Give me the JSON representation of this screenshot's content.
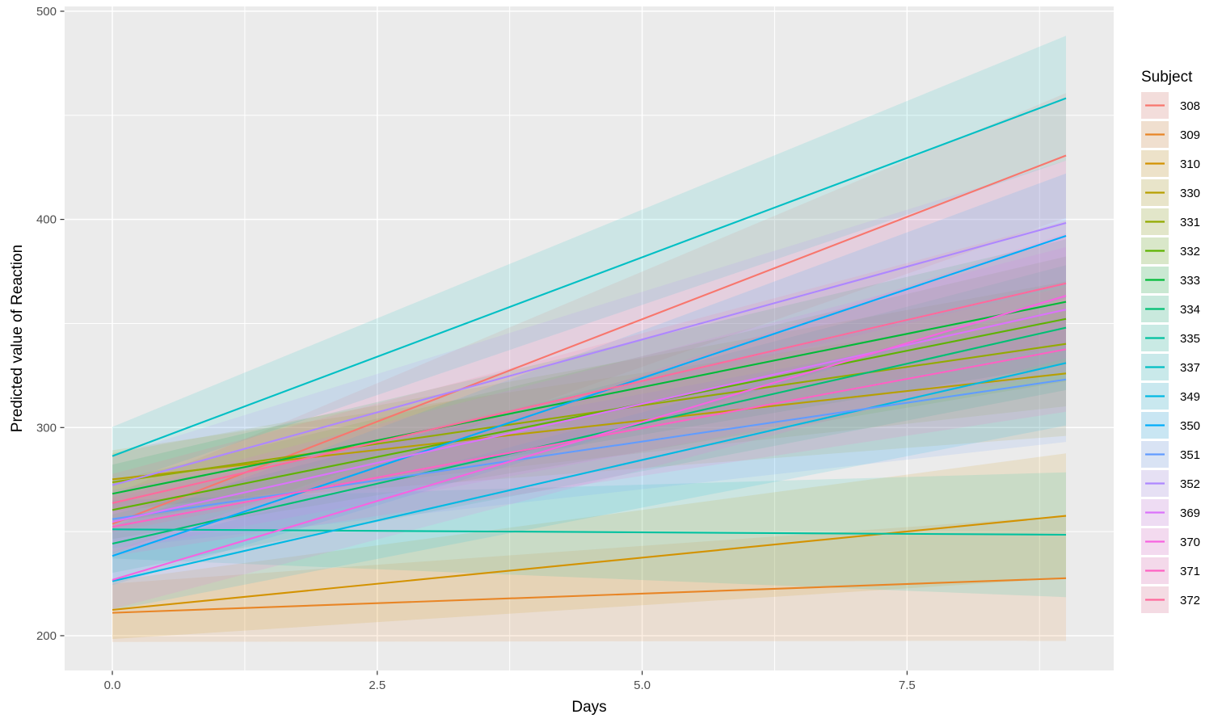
{
  "figure": {
    "background": "#FFFFFF",
    "panel_background": "#EBEBEB",
    "grid_color": "#FFFFFF",
    "tick_mark_color": "#333333",
    "tick_label_color": "#4D4D4D",
    "legend_key_background": "#F2F2F2",
    "ribbon_opacity": 0.13
  },
  "chart_data": {
    "type": "line",
    "title": "",
    "xlabel": "Days",
    "ylabel": "Predicted value of Reaction",
    "legend_title": "Subject",
    "legend_position": "right",
    "grid": true,
    "x_domain": [
      0,
      9
    ],
    "x_range": [
      -0.45,
      9.45
    ],
    "y_range": [
      183.3,
      502.3
    ],
    "x_ticks": [
      {
        "value": 0,
        "label": "0.0"
      },
      {
        "value": 2.5,
        "label": "2.5"
      },
      {
        "value": 5,
        "label": "5.0"
      },
      {
        "value": 7.5,
        "label": "7.5"
      }
    ],
    "y_ticks": [
      {
        "value": 200,
        "label": "200"
      },
      {
        "value": 300,
        "label": "300"
      },
      {
        "value": 400,
        "label": "400"
      },
      {
        "value": 500,
        "label": "500"
      }
    ],
    "x_minor_gridlines": [
      1.25,
      3.75,
      6.25,
      8.75
    ],
    "y_minor_gridlines": [
      250,
      350,
      450
    ],
    "ci_half_width": {
      "day0": 14,
      "day9": 30
    },
    "series": [
      {
        "name": "308",
        "color": "#F8766D",
        "day0": 253.7,
        "day9": 430.7
      },
      {
        "name": "309",
        "color": "#E88526",
        "day0": 211.0,
        "day9": 227.6
      },
      {
        "name": "310",
        "color": "#D39200",
        "day0": 212.4,
        "day9": 257.6
      },
      {
        "name": "330",
        "color": "#B79F00",
        "day0": 275.1,
        "day9": 326.0
      },
      {
        "name": "331",
        "color": "#93AA00",
        "day0": 273.7,
        "day9": 340.2
      },
      {
        "name": "332",
        "color": "#5EB300",
        "day0": 260.4,
        "day9": 352.2
      },
      {
        "name": "333",
        "color": "#00BA38",
        "day0": 268.2,
        "day9": 360.4
      },
      {
        "name": "334",
        "color": "#00BF74",
        "day0": 244.2,
        "day9": 348.0
      },
      {
        "name": "335",
        "color": "#00C19F",
        "day0": 251.1,
        "day9": 248.5
      },
      {
        "name": "337",
        "color": "#00BFC4",
        "day0": 286.3,
        "day9": 458.2
      },
      {
        "name": "349",
        "color": "#00B9E3",
        "day0": 226.2,
        "day9": 331.0
      },
      {
        "name": "350",
        "color": "#00ADFA",
        "day0": 238.3,
        "day9": 392.1
      },
      {
        "name": "351",
        "color": "#619CFF",
        "day0": 256.0,
        "day9": 323.1
      },
      {
        "name": "352",
        "color": "#AE87FF",
        "day0": 272.3,
        "day9": 398.3
      },
      {
        "name": "369",
        "color": "#DB72FB",
        "day0": 254.7,
        "day9": 356.7
      },
      {
        "name": "370",
        "color": "#F763E0",
        "day0": 226.8,
        "day9": 363.3
      },
      {
        "name": "371",
        "color": "#FF61C3",
        "day0": 252.3,
        "day9": 337.6
      },
      {
        "name": "372",
        "color": "#FF699C",
        "day0": 263.7,
        "day9": 369.3
      }
    ]
  }
}
